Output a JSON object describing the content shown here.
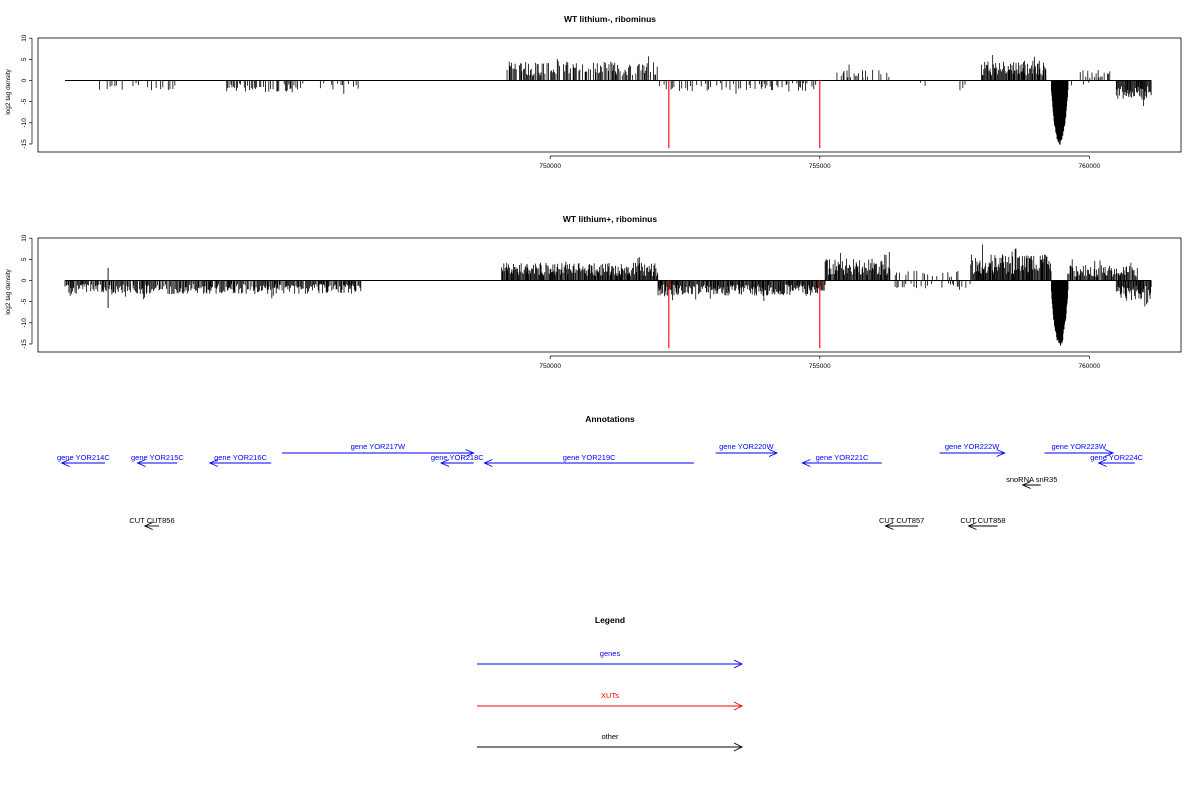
{
  "chart_data": [
    {
      "type": "bar",
      "title": "WT lithium-, ribominus",
      "xlabel": "",
      "ylabel": "log2 tag density",
      "xlim": [
        740500,
        761700
      ],
      "ylim": [
        -16,
        10
      ],
      "yticks": [
        10,
        5,
        0,
        -5,
        -10,
        -15
      ],
      "xticks": [
        750000,
        755000,
        760000
      ],
      "x_tick_labels": [
        "750000",
        "755000",
        "760000"
      ],
      "baseline_range": [
        741000,
        761150
      ],
      "red_markers": {
        "x": [
          752200,
          755000
        ],
        "y_bottom": -16
      },
      "segments": [
        {
          "start": 741500,
          "end": 743100,
          "sign": -1,
          "amp": 2.4,
          "density": 0.35
        },
        {
          "start": 744000,
          "end": 745500,
          "sign": -1,
          "amp": 2.8,
          "density": 0.55
        },
        {
          "start": 745500,
          "end": 746500,
          "sign": -1,
          "amp": 2.4,
          "density": 0.35
        },
        {
          "start": 749200,
          "end": 752000,
          "sign": 1,
          "amp": 4.6,
          "density": 0.7
        },
        {
          "start": 752000,
          "end": 752300,
          "sign": -1,
          "amp": 2.5,
          "density": 0.4
        },
        {
          "start": 752400,
          "end": 753600,
          "sign": -1,
          "amp": 2.5,
          "density": 0.4
        },
        {
          "start": 753600,
          "end": 755000,
          "sign": -1,
          "amp": 2.5,
          "density": 0.5
        },
        {
          "start": 755300,
          "end": 755800,
          "sign": 1,
          "amp": 2.8,
          "density": 0.5
        },
        {
          "start": 755800,
          "end": 756300,
          "sign": 1,
          "amp": 2.5,
          "density": 0.4
        },
        {
          "start": 756800,
          "end": 757000,
          "sign": -1,
          "amp": 1.5,
          "density": 0.3
        },
        {
          "start": 757600,
          "end": 757700,
          "sign": -1,
          "amp": 2.5,
          "density": 0.3
        },
        {
          "start": 758000,
          "end": 759200,
          "sign": 1,
          "amp": 4.8,
          "density": 0.9
        },
        {
          "start": 759600,
          "end": 760000,
          "sign": -1,
          "amp": 1.5,
          "density": 0.3
        },
        {
          "start": 759800,
          "end": 760400,
          "sign": 1,
          "amp": 2.5,
          "density": 0.5
        },
        {
          "start": 760500,
          "end": 761150,
          "sign": -1,
          "amp": 4.5,
          "density": 1.0
        }
      ],
      "peaks": [
        {
          "center": 759450,
          "width": 320,
          "depth": -15.5
        }
      ]
    },
    {
      "type": "bar",
      "title": "WT lithium+, ribominus",
      "xlabel": "",
      "ylabel": "log2 tag density",
      "xlim": [
        740500,
        761700
      ],
      "ylim": [
        -16,
        10
      ],
      "yticks": [
        10,
        5,
        0,
        -5,
        -10,
        -15
      ],
      "xticks": [
        750000,
        755000,
        760000
      ],
      "x_tick_labels": [
        "750000",
        "755000",
        "760000"
      ],
      "baseline_range": [
        741000,
        761150
      ],
      "red_markers": {
        "x": [
          752200,
          755000
        ],
        "y_bottom": -16
      },
      "segments": [
        {
          "start": 741000,
          "end": 746500,
          "sign": -1,
          "amp": 3.2,
          "density": 0.8
        },
        {
          "start": 749100,
          "end": 752000,
          "sign": 1,
          "amp": 4.2,
          "density": 0.95
        },
        {
          "start": 752000,
          "end": 755100,
          "sign": -1,
          "amp": 3.6,
          "density": 0.95
        },
        {
          "start": 755100,
          "end": 756300,
          "sign": 1,
          "amp": 5.2,
          "density": 0.95
        },
        {
          "start": 756300,
          "end": 757800,
          "sign": -1,
          "amp": 2.2,
          "density": 0.45
        },
        {
          "start": 756400,
          "end": 757600,
          "sign": 1,
          "amp": 2.4,
          "density": 0.35
        },
        {
          "start": 757800,
          "end": 759300,
          "sign": 1,
          "amp": 6.2,
          "density": 1.0
        },
        {
          "start": 759600,
          "end": 760900,
          "sign": 1,
          "amp": 3.6,
          "density": 0.85
        },
        {
          "start": 760500,
          "end": 761150,
          "sign": -1,
          "amp": 4.8,
          "density": 1.0
        }
      ],
      "spikes": [
        {
          "x": 741800,
          "y": 3
        },
        {
          "x": 741800,
          "y": -6.5
        }
      ],
      "peaks": [
        {
          "center": 759450,
          "width": 320,
          "depth": -16
        }
      ]
    }
  ],
  "annotations": {
    "title": "Annotations",
    "features": [
      {
        "label": "gene YOR214C",
        "x1": 740600,
        "x2": 741800,
        "row": "top",
        "dir": "left",
        "kind": "gene"
      },
      {
        "label": "gene YOR215C",
        "x1": 742700,
        "x2": 743800,
        "row": "top",
        "dir": "left",
        "kind": "gene"
      },
      {
        "label": "gene YOR216C",
        "x1": 744700,
        "x2": 746400,
        "row": "top",
        "dir": "left",
        "kind": "gene"
      },
      {
        "label": "gene YOR217W",
        "x1": 746700,
        "x2": 752000,
        "row": "upper",
        "dir": "right",
        "kind": "gene"
      },
      {
        "label": "gene YOR218C",
        "x1": 751100,
        "x2": 752000,
        "row": "top",
        "dir": "left",
        "kind": "gene"
      },
      {
        "label": "gene YOR219C",
        "x1": 752300,
        "x2": 758100,
        "row": "top",
        "dir": "left",
        "kind": "gene"
      },
      {
        "label": "gene YOR220W",
        "x1": 758700,
        "x2": 760400,
        "row": "upper",
        "dir": "right",
        "kind": "gene"
      },
      {
        "label": "gene YOR221C",
        "x1": 761100,
        "x2": 763300,
        "row": "top",
        "dir": "left",
        "kind": "gene"
      },
      {
        "label": "gene YOR222W",
        "x1": 764900,
        "x2": 766700,
        "row": "upper",
        "dir": "right",
        "kind": "gene"
      },
      {
        "label": "gene YOR223W",
        "x1": 767800,
        "x2": 769700,
        "row": "upper",
        "dir": "right",
        "kind": "gene"
      },
      {
        "label": "gene YOR224C",
        "x1": 769300,
        "x2": 770300,
        "row": "top",
        "dir": "left",
        "kind": "gene"
      },
      {
        "label": "snoRNA snR35",
        "x1": 767200,
        "x2": 767700,
        "row": "mid",
        "dir": "left",
        "kind": "other"
      },
      {
        "label": "CUT CUT856",
        "x1": 742900,
        "x2": 743300,
        "row": "bottom",
        "dir": "left",
        "kind": "other"
      },
      {
        "label": "CUT CUT857",
        "x1": 763400,
        "x2": 764300,
        "row": "bottom",
        "dir": "left",
        "kind": "other"
      },
      {
        "label": "CUT CUT858",
        "x1": 765700,
        "x2": 766500,
        "row": "bottom",
        "dir": "left",
        "kind": "other"
      }
    ]
  },
  "legend": {
    "title": "Legend",
    "items": [
      {
        "label": "genes",
        "color": "#0000ff"
      },
      {
        "label": "XUTs",
        "color": "#ff0000"
      },
      {
        "label": "other",
        "color": "#000000"
      }
    ]
  },
  "colors": {
    "gene": "#0000ff",
    "xut": "#ff0000",
    "other": "#000000",
    "marker": "#ff0000"
  }
}
